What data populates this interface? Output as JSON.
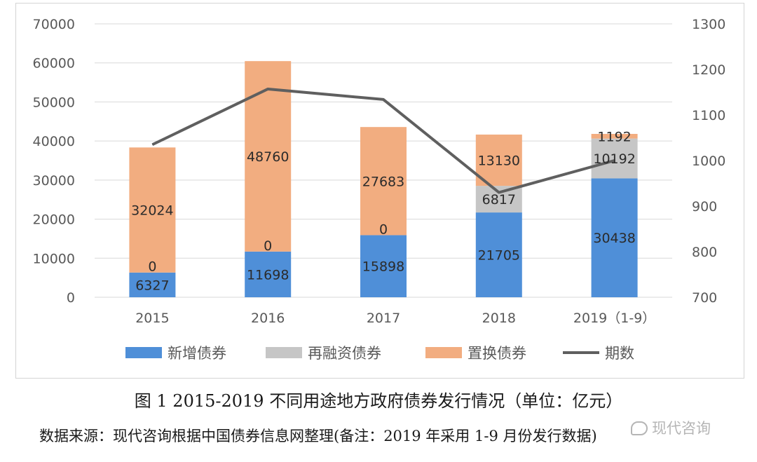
{
  "chart_data": {
    "type": "bar",
    "stacked": true,
    "categories": [
      "2015",
      "2016",
      "2017",
      "2018",
      "2019（1-9）"
    ],
    "series": [
      {
        "name": "新增债券",
        "values": [
          6327,
          11698,
          15898,
          21705,
          30438
        ],
        "color": "#4f8fd8",
        "label_color": "#2b2b2b"
      },
      {
        "name": "再融资债券",
        "values": [
          0,
          0,
          0,
          6817,
          10192
        ],
        "color": "#c6c6c6",
        "label_color": "#2b2b2b"
      },
      {
        "name": "置换债券",
        "values": [
          32024,
          48760,
          27683,
          13130,
          1192
        ],
        "color": "#f2ad80",
        "label_color": "#2b2b2b"
      }
    ],
    "line_series": {
      "name": "期数",
      "values": [
        1035,
        1157,
        1134,
        930,
        1000
      ],
      "color": "#5f5f5f",
      "axis": "right"
    },
    "y_left": {
      "min": 0,
      "max": 70000,
      "ticks": [
        "0",
        "10000",
        "20000",
        "30000",
        "40000",
        "50000",
        "60000",
        "70000"
      ]
    },
    "y_right": {
      "min": 700,
      "max": 1300,
      "ticks": [
        "700",
        "800",
        "900",
        "1000",
        "1100",
        "1200",
        "1300"
      ]
    },
    "legend": {
      "placement": "bottom"
    },
    "grid": true
  },
  "caption": "图 1 2015-2019 不同用途地方政府债券发行情况（单位：亿元）",
  "source_note": "数据来源：现代咨询根据中国债券信息网整理(备注：2019 年采用 1-9 月份发行数据)",
  "watermark": "现代咨询"
}
